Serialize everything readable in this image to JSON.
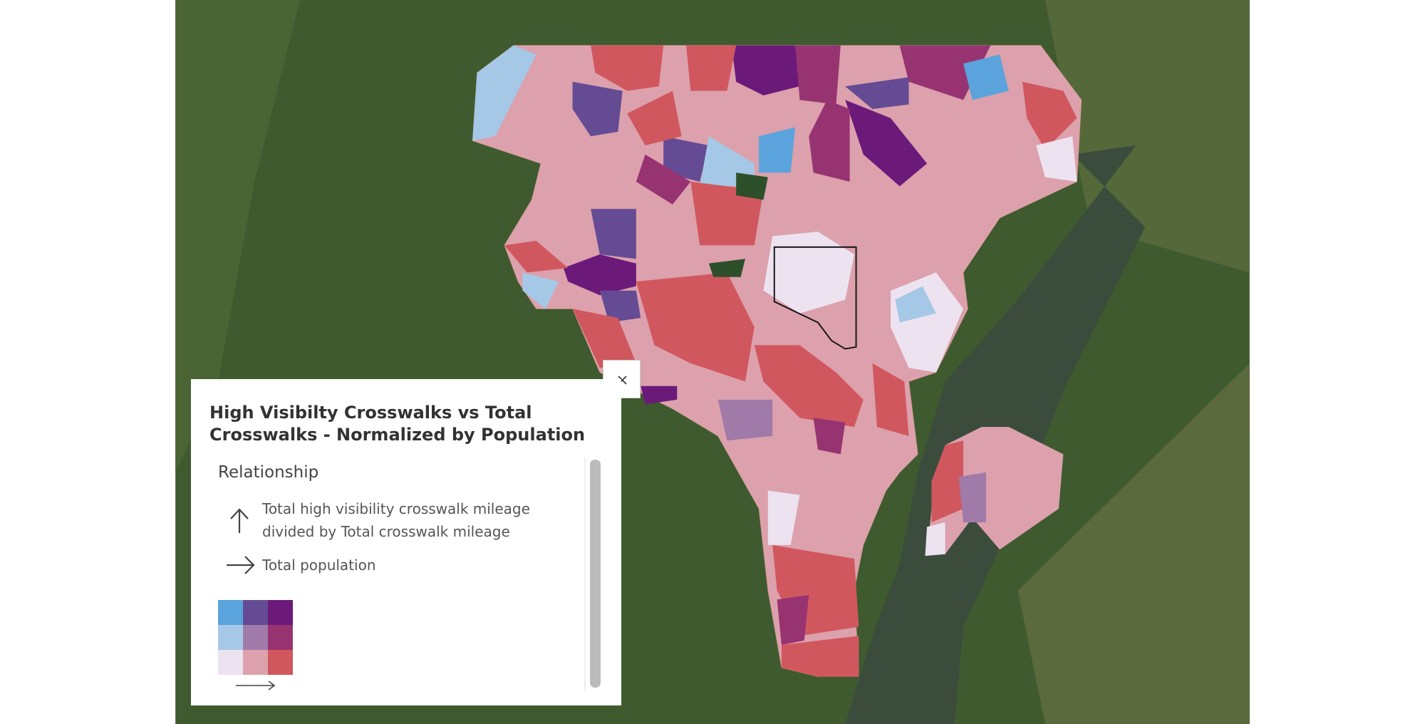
{
  "legend": {
    "title": "High Visibilty Crosswalks vs Total Crosswalks - Normalized by Population",
    "section": "Relationship",
    "y_field": "Total high visibility crosswalk mileage divided by Total crosswalk mileage",
    "x_field": "Total population"
  }
}
